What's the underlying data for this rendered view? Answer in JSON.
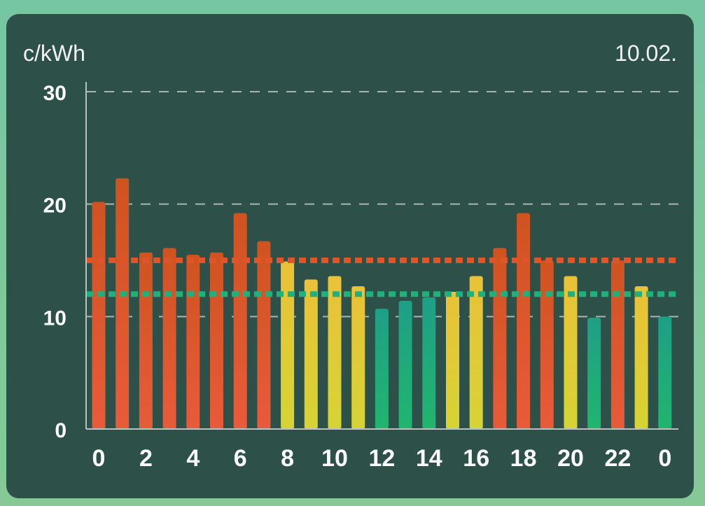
{
  "header": {
    "unit": "c/kWh",
    "date": "10.02."
  },
  "chart_data": {
    "type": "bar",
    "ylabel": "c/kWh",
    "ylim": [
      0,
      30
    ],
    "yticks": [
      0,
      10,
      20,
      30
    ],
    "x_tick_labels": [
      "0",
      "2",
      "4",
      "6",
      "8",
      "10",
      "12",
      "14",
      "16",
      "18",
      "20",
      "22",
      "0"
    ],
    "categories": [
      "0",
      "1",
      "2",
      "3",
      "4",
      "5",
      "6",
      "7",
      "8",
      "9",
      "10",
      "11",
      "12",
      "13",
      "14",
      "15",
      "16",
      "17",
      "18",
      "19",
      "20",
      "21",
      "22",
      "23",
      "0"
    ],
    "values": [
      20.2,
      22.3,
      15.7,
      16.1,
      15.5,
      15.7,
      19.2,
      16.7,
      14.9,
      13.3,
      13.6,
      12.7,
      10.7,
      11.4,
      11.7,
      12.2,
      13.6,
      16.1,
      19.2,
      15.0,
      13.6,
      9.9,
      15.0,
      12.7,
      10.0
    ],
    "bar_levels": [
      "high",
      "high",
      "high",
      "high",
      "high",
      "high",
      "high",
      "high",
      "mid",
      "mid",
      "mid",
      "mid",
      "low",
      "low",
      "low",
      "mid",
      "mid",
      "high",
      "high",
      "high",
      "mid",
      "low",
      "high",
      "mid",
      "low"
    ],
    "reference_lines": [
      {
        "value": 15.0,
        "color": "#e0542a"
      },
      {
        "value": 12.0,
        "color": "#1fb07c"
      }
    ],
    "colors": {
      "high": "#e0542a",
      "mid": "#e9c132",
      "low": "#1fae7e",
      "grid": "#a9b5b0",
      "axis": "#b9c2be",
      "text": "#ffffff"
    },
    "grid": true
  }
}
